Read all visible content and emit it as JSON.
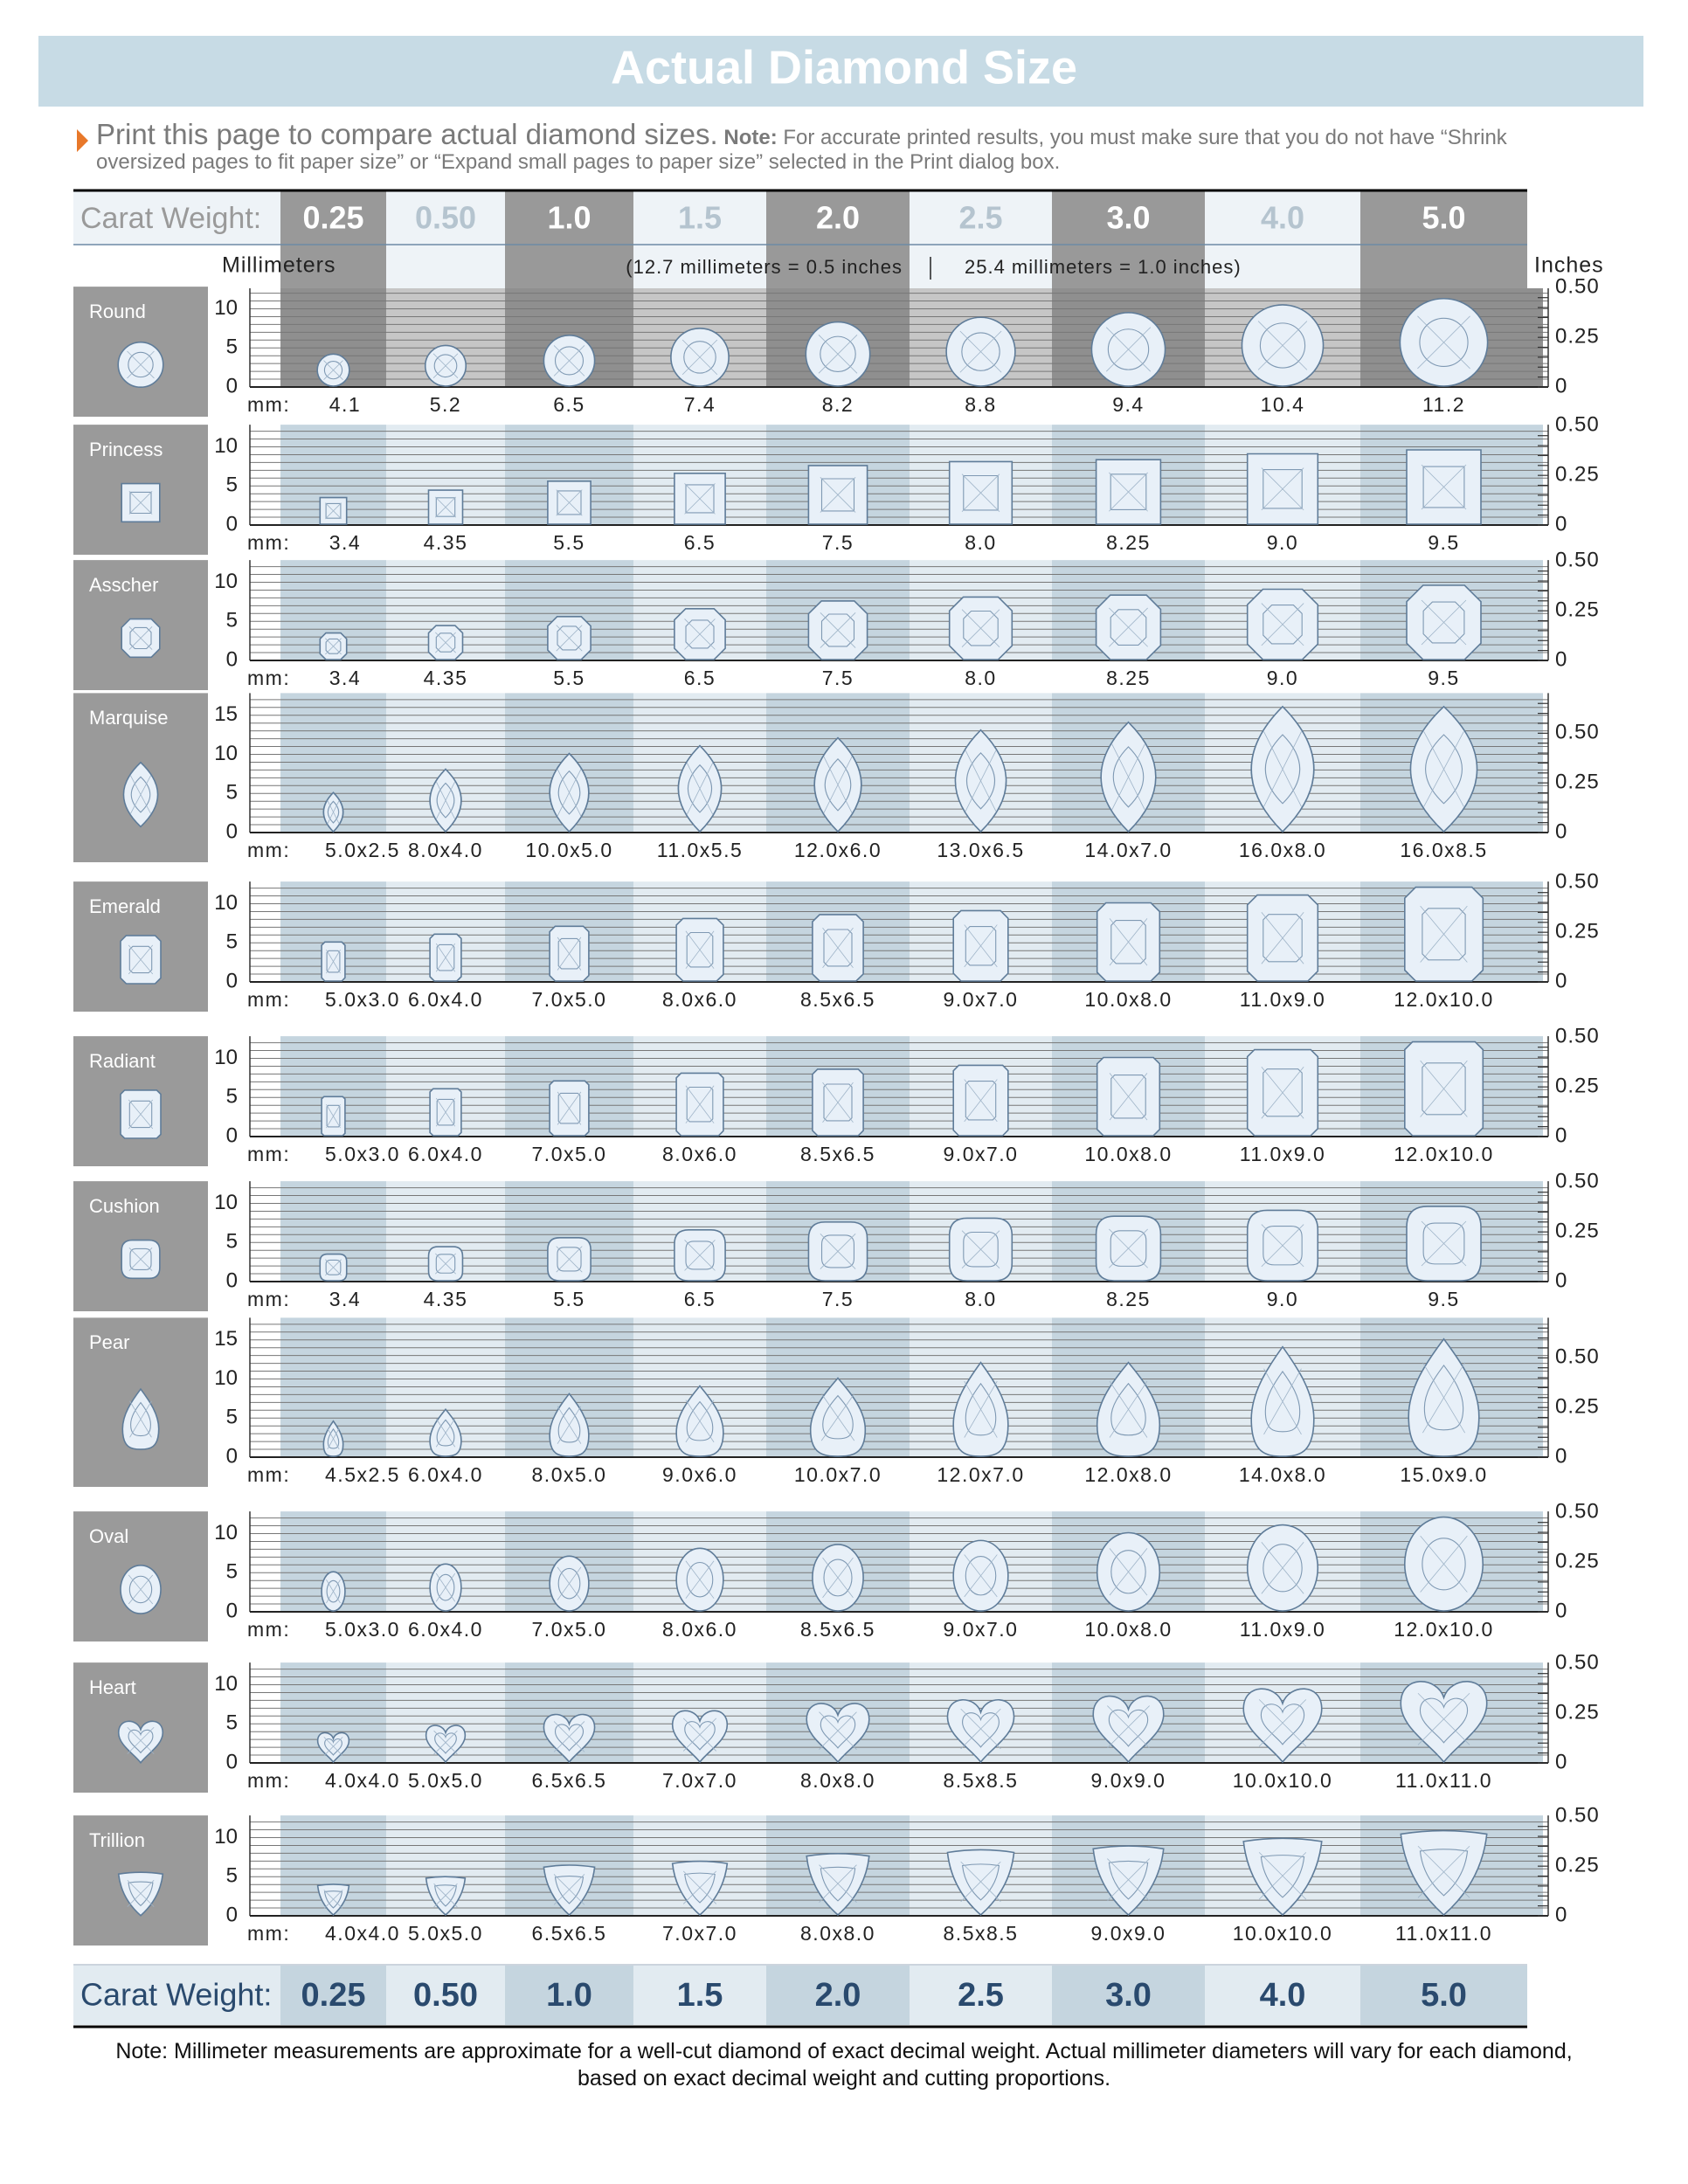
{
  "header": {
    "title": "Actual Diamond Size"
  },
  "intro": {
    "lead": "Print this page to compare actual diamond sizes.",
    "note_label": "Note:",
    "note_text": "For accurate printed results, you must make sure that you do not have “Shrink oversized pages to fit paper size” or “Expand small pages to paper size” selected in the Print dialog box."
  },
  "carat_label": "Carat Weight:",
  "carats": [
    "0.25",
    "0.50",
    "1.0",
    "1.5",
    "2.0",
    "2.5",
    "3.0",
    "4.0",
    "5.0"
  ],
  "scale": {
    "millimeters": "Millimeters",
    "note_left": "(12.7 millimeters = 0.5 inches",
    "note_right": "25.4 millimeters = 1.0 inches)",
    "inches": "Inches"
  },
  "mm_prefix": "mm:",
  "shapes": [
    {
      "name": "Round",
      "mm_ticks": [
        "10",
        "5",
        "0"
      ],
      "inch_ticks": [
        "0.50",
        "0.25",
        "0"
      ],
      "sizes": [
        "4.1",
        "5.2",
        "6.5",
        "7.4",
        "8.2",
        "8.8",
        "9.4",
        "10.4",
        "11.2"
      ]
    },
    {
      "name": "Princess",
      "mm_ticks": [
        "10",
        "5",
        "0"
      ],
      "inch_ticks": [
        "0.50",
        "0.25",
        "0"
      ],
      "sizes": [
        "3.4",
        "4.35",
        "5.5",
        "6.5",
        "7.5",
        "8.0",
        "8.25",
        "9.0",
        "9.5"
      ]
    },
    {
      "name": "Asscher",
      "mm_ticks": [
        "10",
        "5",
        "0"
      ],
      "inch_ticks": [
        "0.50",
        "0.25",
        "0"
      ],
      "sizes": [
        "3.4",
        "4.35",
        "5.5",
        "6.5",
        "7.5",
        "8.0",
        "8.25",
        "9.0",
        "9.5"
      ]
    },
    {
      "name": "Marquise",
      "mm_ticks": [
        "15",
        "10",
        "5",
        "0"
      ],
      "inch_ticks": [
        "0.50",
        "0.25",
        "0"
      ],
      "sizes": [
        "5.0x2.5",
        "8.0x4.0",
        "10.0x5.0",
        "11.0x5.5",
        "12.0x6.0",
        "13.0x6.5",
        "14.0x7.0",
        "16.0x8.0",
        "16.0x8.5"
      ]
    },
    {
      "name": "Emerald",
      "mm_ticks": [
        "10",
        "5",
        "0"
      ],
      "inch_ticks": [
        "0.50",
        "0.25",
        "0"
      ],
      "sizes": [
        "5.0x3.0",
        "6.0x4.0",
        "7.0x5.0",
        "8.0x6.0",
        "8.5x6.5",
        "9.0x7.0",
        "10.0x8.0",
        "11.0x9.0",
        "12.0x10.0"
      ]
    },
    {
      "name": "Radiant",
      "mm_ticks": [
        "10",
        "5",
        "0"
      ],
      "inch_ticks": [
        "0.50",
        "0.25",
        "0"
      ],
      "sizes": [
        "5.0x3.0",
        "6.0x4.0",
        "7.0x5.0",
        "8.0x6.0",
        "8.5x6.5",
        "9.0x7.0",
        "10.0x8.0",
        "11.0x9.0",
        "12.0x10.0"
      ]
    },
    {
      "name": "Cushion",
      "mm_ticks": [
        "10",
        "5",
        "0"
      ],
      "inch_ticks": [
        "0.50",
        "0.25",
        "0"
      ],
      "sizes": [
        "3.4",
        "4.35",
        "5.5",
        "6.5",
        "7.5",
        "8.0",
        "8.25",
        "9.0",
        "9.5"
      ]
    },
    {
      "name": "Pear",
      "mm_ticks": [
        "15",
        "10",
        "5",
        "0"
      ],
      "inch_ticks": [
        "0.50",
        "0.25",
        "0"
      ],
      "sizes": [
        "4.5x2.5",
        "6.0x4.0",
        "8.0x5.0",
        "9.0x6.0",
        "10.0x7.0",
        "12.0x7.0",
        "12.0x8.0",
        "14.0x8.0",
        "15.0x9.0"
      ]
    },
    {
      "name": "Oval",
      "mm_ticks": [
        "10",
        "5",
        "0"
      ],
      "inch_ticks": [
        "0.50",
        "0.25",
        "0"
      ],
      "sizes": [
        "5.0x3.0",
        "6.0x4.0",
        "7.0x5.0",
        "8.0x6.0",
        "8.5x6.5",
        "9.0x7.0",
        "10.0x8.0",
        "11.0x9.0",
        "12.0x10.0"
      ]
    },
    {
      "name": "Heart",
      "mm_ticks": [
        "10",
        "5",
        "0"
      ],
      "inch_ticks": [
        "0.50",
        "0.25",
        "0"
      ],
      "sizes": [
        "4.0x4.0",
        "5.0x5.0",
        "6.5x6.5",
        "7.0x7.0",
        "8.0x8.0",
        "8.5x8.5",
        "9.0x9.0",
        "10.0x10.0",
        "11.0x11.0"
      ]
    },
    {
      "name": "Trillion",
      "mm_ticks": [
        "10",
        "5",
        "0"
      ],
      "inch_ticks": [
        "0.50",
        "0.25",
        "0"
      ],
      "sizes": [
        "4.0x4.0",
        "5.0x5.0",
        "6.5x6.5",
        "7.0x7.0",
        "8.0x8.0",
        "8.5x8.5",
        "9.0x9.0",
        "10.0x10.0",
        "11.0x11.0"
      ]
    }
  ],
  "footer": "Note: Millimeter measurements are approximate for a well-cut diamond of exact decimal weight. Actual millimeter diameters will vary for each diamond, based on exact decimal weight and cutting proportions."
}
